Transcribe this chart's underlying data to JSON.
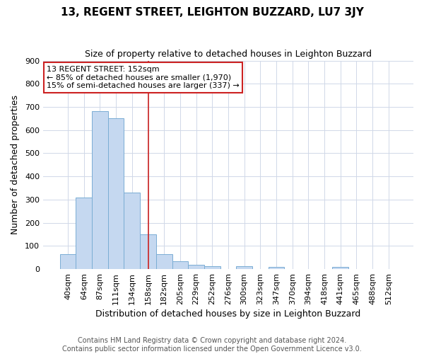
{
  "title": "13, REGENT STREET, LEIGHTON BUZZARD, LU7 3JY",
  "subtitle": "Size of property relative to detached houses in Leighton Buzzard",
  "xlabel": "Distribution of detached houses by size in Leighton Buzzard",
  "ylabel": "Number of detached properties",
  "footnote1": "Contains HM Land Registry data © Crown copyright and database right 2024.",
  "footnote2": "Contains public sector information licensed under the Open Government Licence v3.0.",
  "categories": [
    "40sqm",
    "64sqm",
    "87sqm",
    "111sqm",
    "134sqm",
    "158sqm",
    "182sqm",
    "205sqm",
    "229sqm",
    "252sqm",
    "276sqm",
    "300sqm",
    "323sqm",
    "347sqm",
    "370sqm",
    "394sqm",
    "418sqm",
    "441sqm",
    "465sqm",
    "488sqm",
    "512sqm"
  ],
  "values": [
    63,
    310,
    683,
    650,
    330,
    150,
    63,
    33,
    18,
    12,
    0,
    12,
    0,
    8,
    0,
    0,
    0,
    10,
    0,
    0,
    0
  ],
  "bar_color": "#c5d8f0",
  "bar_edge_color": "#7aadd4",
  "annotation_box_text": "13 REGENT STREET: 152sqm\n← 85% of detached houses are smaller (1,970)\n15% of semi-detached houses are larger (337) →",
  "annotation_box_color": "#ffffff",
  "annotation_box_edge_color": "#cc2222",
  "vline_x_index": 5,
  "vline_color": "#cc2222",
  "background_color": "#ffffff",
  "plot_bg_color": "#ffffff",
  "grid_color": "#d0d8e8",
  "ylim": [
    0,
    900
  ],
  "yticks": [
    0,
    100,
    200,
    300,
    400,
    500,
    600,
    700,
    800,
    900
  ],
  "title_fontsize": 11,
  "subtitle_fontsize": 9,
  "xlabel_fontsize": 9,
  "ylabel_fontsize": 9,
  "tick_fontsize": 8,
  "annot_fontsize": 8,
  "footnote_fontsize": 7
}
